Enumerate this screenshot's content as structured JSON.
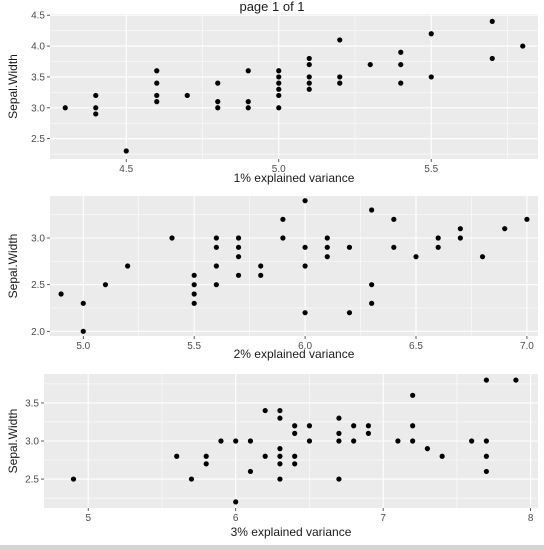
{
  "page": {
    "title": "page 1 of 1"
  },
  "colors": {
    "panel": "#ebebeb",
    "grid_major": "#ffffff",
    "point": "#000000",
    "strip": "#d4d4d4"
  },
  "chart_data": [
    {
      "type": "scatter",
      "xlabel": "1% explained variance",
      "ylabel": "Sepal.Width",
      "xlim": [
        4.25,
        5.85
      ],
      "ylim": [
        2.17,
        4.52
      ],
      "x_ticks": [
        4.5,
        5.0,
        5.5
      ],
      "y_ticks": [
        2.5,
        3.0,
        3.5,
        4.0,
        4.5
      ],
      "x_tick_labels": [
        "4.5",
        "5.0",
        "5.5"
      ],
      "y_tick_labels": [
        "2.5",
        "3.0",
        "3.5",
        "4.0",
        "4.5"
      ],
      "grid": true,
      "points": [
        [
          4.3,
          3.0
        ],
        [
          4.4,
          3.2
        ],
        [
          4.4,
          3.0
        ],
        [
          4.4,
          2.9
        ],
        [
          4.5,
          2.3
        ],
        [
          4.6,
          3.6
        ],
        [
          4.6,
          3.4
        ],
        [
          4.6,
          3.2
        ],
        [
          4.6,
          3.1
        ],
        [
          4.7,
          3.2
        ],
        [
          4.8,
          3.4
        ],
        [
          4.8,
          3.1
        ],
        [
          4.8,
          3.0
        ],
        [
          4.9,
          3.6
        ],
        [
          4.9,
          3.1
        ],
        [
          4.9,
          3.0
        ],
        [
          5.0,
          3.6
        ],
        [
          5.0,
          3.5
        ],
        [
          5.0,
          3.4
        ],
        [
          5.0,
          3.3
        ],
        [
          5.0,
          3.2
        ],
        [
          5.0,
          3.0
        ],
        [
          5.1,
          3.8
        ],
        [
          5.1,
          3.7
        ],
        [
          5.1,
          3.5
        ],
        [
          5.1,
          3.4
        ],
        [
          5.1,
          3.3
        ],
        [
          5.2,
          4.1
        ],
        [
          5.2,
          3.5
        ],
        [
          5.2,
          3.4
        ],
        [
          5.3,
          3.7
        ],
        [
          5.4,
          3.9
        ],
        [
          5.4,
          3.7
        ],
        [
          5.4,
          3.4
        ],
        [
          5.5,
          4.2
        ],
        [
          5.5,
          3.5
        ],
        [
          5.7,
          4.4
        ],
        [
          5.7,
          3.8
        ],
        [
          5.8,
          4.0
        ]
      ]
    },
    {
      "type": "scatter",
      "xlabel": "2% explained variance",
      "ylabel": "Sepal.Width",
      "xlim": [
        4.85,
        7.05
      ],
      "ylim": [
        1.95,
        3.45
      ],
      "x_ticks": [
        5.0,
        5.5,
        6.0,
        6.5,
        7.0
      ],
      "y_ticks": [
        2.0,
        2.5,
        3.0
      ],
      "x_tick_labels": [
        "5.0",
        "5.5",
        "6.0",
        "6.5",
        "7.0"
      ],
      "y_tick_labels": [
        "2.0",
        "2.5",
        "3.0"
      ],
      "grid": true,
      "points": [
        [
          4.9,
          2.4
        ],
        [
          5.0,
          2.3
        ],
        [
          5.0,
          2.0
        ],
        [
          5.1,
          2.5
        ],
        [
          5.2,
          2.7
        ],
        [
          5.4,
          3.0
        ],
        [
          5.5,
          2.6
        ],
        [
          5.5,
          2.5
        ],
        [
          5.5,
          2.4
        ],
        [
          5.5,
          2.3
        ],
        [
          5.6,
          3.0
        ],
        [
          5.6,
          2.9
        ],
        [
          5.6,
          2.7
        ],
        [
          5.6,
          2.5
        ],
        [
          5.7,
          3.0
        ],
        [
          5.7,
          2.9
        ],
        [
          5.7,
          2.8
        ],
        [
          5.7,
          2.6
        ],
        [
          5.8,
          2.7
        ],
        [
          5.8,
          2.6
        ],
        [
          5.9,
          3.2
        ],
        [
          5.9,
          3.0
        ],
        [
          6.0,
          3.4
        ],
        [
          6.0,
          2.9
        ],
        [
          6.0,
          2.7
        ],
        [
          6.0,
          2.2
        ],
        [
          6.1,
          3.0
        ],
        [
          6.1,
          2.9
        ],
        [
          6.1,
          2.8
        ],
        [
          6.2,
          2.9
        ],
        [
          6.2,
          2.2
        ],
        [
          6.3,
          3.3
        ],
        [
          6.3,
          2.5
        ],
        [
          6.3,
          2.3
        ],
        [
          6.4,
          3.2
        ],
        [
          6.4,
          2.9
        ],
        [
          6.5,
          2.8
        ],
        [
          6.6,
          3.0
        ],
        [
          6.6,
          2.9
        ],
        [
          6.7,
          3.1
        ],
        [
          6.7,
          3.0
        ],
        [
          6.8,
          2.8
        ],
        [
          6.9,
          3.1
        ],
        [
          7.0,
          3.2
        ]
      ]
    },
    {
      "type": "scatter",
      "xlabel": "3% explained variance",
      "ylabel": "Sepal.Width",
      "xlim": [
        4.7,
        8.05
      ],
      "ylim": [
        2.12,
        3.88
      ],
      "x_ticks": [
        5,
        6,
        7,
        8
      ],
      "y_ticks": [
        2.5,
        3.0,
        3.5
      ],
      "x_tick_labels": [
        "5",
        "6",
        "7",
        "8"
      ],
      "y_tick_labels": [
        "2.5",
        "3.0",
        "3.5"
      ],
      "grid": true,
      "points": [
        [
          4.9,
          2.5
        ],
        [
          5.6,
          2.8
        ],
        [
          5.7,
          2.5
        ],
        [
          5.8,
          2.8
        ],
        [
          5.8,
          2.7
        ],
        [
          5.9,
          3.0
        ],
        [
          6.0,
          3.0
        ],
        [
          6.0,
          2.2
        ],
        [
          6.1,
          3.0
        ],
        [
          6.1,
          2.6
        ],
        [
          6.2,
          3.4
        ],
        [
          6.2,
          2.8
        ],
        [
          6.3,
          3.4
        ],
        [
          6.3,
          3.3
        ],
        [
          6.3,
          2.9
        ],
        [
          6.3,
          2.8
        ],
        [
          6.3,
          2.7
        ],
        [
          6.3,
          2.5
        ],
        [
          6.4,
          3.2
        ],
        [
          6.4,
          3.1
        ],
        [
          6.4,
          2.8
        ],
        [
          6.4,
          2.7
        ],
        [
          6.5,
          3.2
        ],
        [
          6.5,
          3.0
        ],
        [
          6.7,
          3.3
        ],
        [
          6.7,
          3.1
        ],
        [
          6.7,
          3.0
        ],
        [
          6.7,
          2.5
        ],
        [
          6.8,
          3.2
        ],
        [
          6.8,
          3.0
        ],
        [
          6.9,
          3.2
        ],
        [
          6.9,
          3.1
        ],
        [
          7.1,
          3.0
        ],
        [
          7.2,
          3.6
        ],
        [
          7.2,
          3.2
        ],
        [
          7.2,
          3.0
        ],
        [
          7.3,
          2.9
        ],
        [
          7.4,
          2.8
        ],
        [
          7.6,
          3.0
        ],
        [
          7.7,
          3.8
        ],
        [
          7.7,
          3.0
        ],
        [
          7.7,
          2.8
        ],
        [
          7.7,
          2.6
        ],
        [
          7.9,
          3.8
        ]
      ]
    }
  ]
}
